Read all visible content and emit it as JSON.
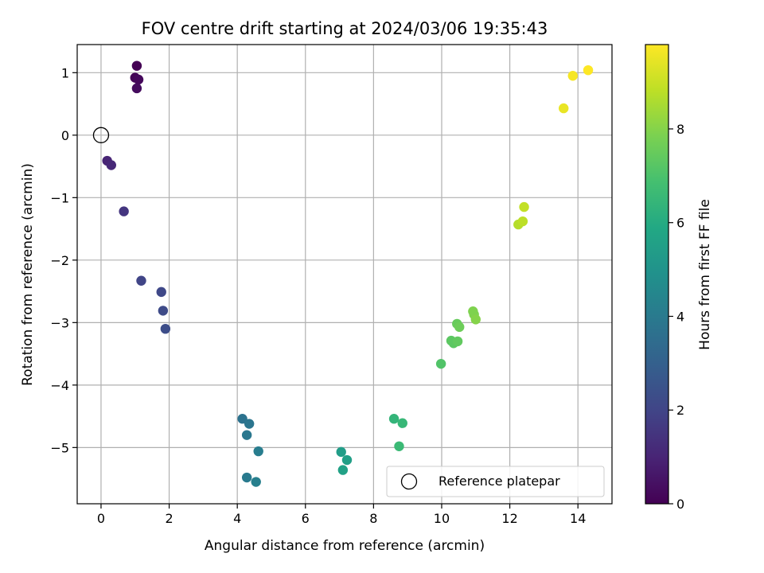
{
  "chart_data": {
    "type": "scatter",
    "title": "FOV centre drift starting at 2024/03/06 19:35:43",
    "xlabel": "Angular distance from reference (arcmin)",
    "ylabel": "Rotation from reference (arcmin)",
    "xlim": [
      -0.7,
      15.0
    ],
    "ylim": [
      -5.9,
      1.45
    ],
    "xticks": [
      0,
      2,
      4,
      6,
      8,
      10,
      12,
      14
    ],
    "yticks": [
      1,
      0,
      -1,
      -2,
      -3,
      -4,
      -5
    ],
    "yticks_labels": [
      "1",
      "0",
      "−1",
      "−2",
      "−3",
      "−4",
      "−5"
    ],
    "grid": true,
    "reference_point": {
      "x": 0,
      "y": 0
    },
    "legend": {
      "label": "Reference platepar",
      "placement": "lower-right"
    },
    "colorbar": {
      "label": "Hours from first FF file",
      "range": [
        0,
        9.8
      ],
      "ticks": [
        0,
        2,
        4,
        6,
        8
      ],
      "colormap": "viridis"
    },
    "series": [
      {
        "points": [
          {
            "x": 1.05,
            "y": 1.11,
            "c": 0.0
          },
          {
            "x": 1.0,
            "y": 0.92,
            "c": 0.1
          },
          {
            "x": 1.1,
            "y": 0.89,
            "c": 0.2
          },
          {
            "x": 1.05,
            "y": 0.75,
            "c": 0.3
          },
          {
            "x": 0.18,
            "y": -0.41,
            "c": 1.0
          },
          {
            "x": 0.3,
            "y": -0.48,
            "c": 1.1
          },
          {
            "x": 0.67,
            "y": -1.22,
            "c": 1.5
          },
          {
            "x": 1.18,
            "y": -2.33,
            "c": 2.0
          },
          {
            "x": 1.77,
            "y": -2.51,
            "c": 2.1
          },
          {
            "x": 1.82,
            "y": -2.81,
            "c": 2.2
          },
          {
            "x": 1.89,
            "y": -3.1,
            "c": 2.3
          },
          {
            "x": 4.15,
            "y": -4.54,
            "c": 3.7
          },
          {
            "x": 4.35,
            "y": -4.62,
            "c": 3.8
          },
          {
            "x": 4.28,
            "y": -4.8,
            "c": 3.9
          },
          {
            "x": 4.62,
            "y": -5.06,
            "c": 4.1
          },
          {
            "x": 4.28,
            "y": -5.48,
            "c": 4.0
          },
          {
            "x": 4.55,
            "y": -5.55,
            "c": 4.2
          },
          {
            "x": 7.05,
            "y": -5.07,
            "c": 5.4
          },
          {
            "x": 7.22,
            "y": -5.2,
            "c": 5.5
          },
          {
            "x": 7.1,
            "y": -5.36,
            "c": 5.6
          },
          {
            "x": 8.6,
            "y": -4.54,
            "c": 6.4
          },
          {
            "x": 8.85,
            "y": -4.61,
            "c": 6.5
          },
          {
            "x": 8.75,
            "y": -4.98,
            "c": 6.6
          },
          {
            "x": 9.98,
            "y": -3.66,
            "c": 7.1
          },
          {
            "x": 10.28,
            "y": -3.29,
            "c": 7.3
          },
          {
            "x": 10.35,
            "y": -3.33,
            "c": 7.3
          },
          {
            "x": 10.47,
            "y": -3.3,
            "c": 7.4
          },
          {
            "x": 10.45,
            "y": -3.02,
            "c": 7.5
          },
          {
            "x": 10.52,
            "y": -3.07,
            "c": 7.6
          },
          {
            "x": 10.92,
            "y": -2.82,
            "c": 7.9
          },
          {
            "x": 10.95,
            "y": -2.87,
            "c": 7.9
          },
          {
            "x": 11.0,
            "y": -2.95,
            "c": 8.0
          },
          {
            "x": 12.25,
            "y": -1.43,
            "c": 8.7
          },
          {
            "x": 12.38,
            "y": -1.38,
            "c": 8.8
          },
          {
            "x": 12.42,
            "y": -1.15,
            "c": 8.9
          },
          {
            "x": 13.58,
            "y": 0.43,
            "c": 9.5
          },
          {
            "x": 13.85,
            "y": 0.95,
            "c": 9.7
          },
          {
            "x": 14.3,
            "y": 1.04,
            "c": 9.8
          }
        ]
      }
    ]
  }
}
